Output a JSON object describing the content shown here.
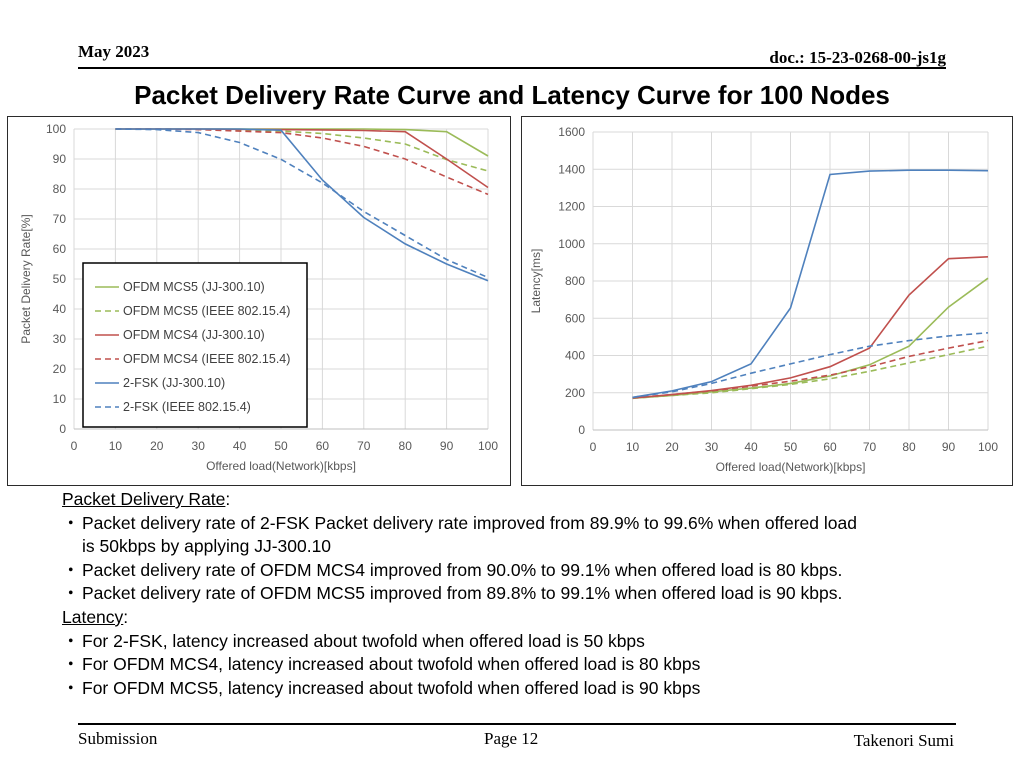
{
  "header": {
    "date": "May 2023",
    "doc": "doc.: 15-23-0268-00-js1g"
  },
  "title": "Packet Delivery Rate Curve and Latency Curve for 100 Nodes",
  "colors": {
    "green": "#9bbb59",
    "red": "#c0504d",
    "blue": "#4f81bd"
  },
  "chart_data": [
    {
      "type": "line",
      "id": "pdr",
      "title": "",
      "xlabel": "Offered load(Network)[kbps]",
      "ylabel": "Packet Delivery Rate[%]",
      "xlim": [
        0,
        100
      ],
      "ylim": [
        0,
        100
      ],
      "xticks": [
        "0",
        "10",
        "20",
        "30",
        "40",
        "50",
        "60",
        "70",
        "80",
        "90",
        "100"
      ],
      "yticks": [
        "0",
        "10",
        "20",
        "30",
        "40",
        "50",
        "60",
        "70",
        "80",
        "90",
        "100"
      ],
      "grid": true,
      "legend": "bottom-left",
      "x": [
        10,
        20,
        30,
        40,
        50,
        60,
        70,
        80,
        90,
        100
      ],
      "series": [
        {
          "name": "OFDM MCS5 (JJ-300.10)",
          "color": "#9bbb59",
          "dash": false,
          "values": [
            100,
            100,
            100,
            100,
            100,
            100,
            100,
            99.8,
            99.1,
            91
          ]
        },
        {
          "name": "OFDM MCS5 (IEEE 802.15.4)",
          "color": "#9bbb59",
          "dash": true,
          "values": [
            100,
            100,
            99.9,
            99.6,
            99.3,
            98.5,
            97,
            95,
            89.8,
            86
          ]
        },
        {
          "name": "OFDM MCS4 (JJ-300.10)",
          "color": "#c0504d",
          "dash": false,
          "values": [
            100,
            100,
            100,
            99.9,
            99.8,
            99.7,
            99.5,
            99.1,
            90,
            80.5
          ]
        },
        {
          "name": "OFDM MCS4 (IEEE 802.15.4)",
          "color": "#c0504d",
          "dash": true,
          "values": [
            100,
            100,
            99.8,
            99.3,
            98.8,
            97,
            94.2,
            90,
            84,
            78.2
          ]
        },
        {
          "name": "2-FSK (JJ-300.10)",
          "color": "#4f81bd",
          "dash": false,
          "values": [
            100,
            100,
            100,
            100,
            99.6,
            83,
            70.5,
            61.7,
            55,
            49.4
          ]
        },
        {
          "name": "2-FSK (IEEE 802.15.4)",
          "color": "#4f81bd",
          "dash": true,
          "values": [
            100,
            99.8,
            98.8,
            95.5,
            89.9,
            82,
            72.5,
            64.5,
            56.5,
            50.5
          ]
        }
      ]
    },
    {
      "type": "line",
      "id": "latency",
      "title": "",
      "xlabel": "Offered load(Network)[kbps]",
      "ylabel": "Latency[ms]",
      "xlim": [
        0,
        100
      ],
      "ylim": [
        0,
        1600
      ],
      "xticks": [
        "0",
        "10",
        "20",
        "30",
        "40",
        "50",
        "60",
        "70",
        "80",
        "90",
        "100"
      ],
      "yticks": [
        "0",
        "200",
        "400",
        "600",
        "800",
        "1000",
        "1200",
        "1400",
        "1600"
      ],
      "grid": true,
      "legend": "none",
      "x": [
        10,
        20,
        30,
        40,
        50,
        60,
        70,
        80,
        90,
        100
      ],
      "series": [
        {
          "name": "OFDM MCS5 (JJ-300.10)",
          "color": "#9bbb59",
          "dash": false,
          "values": [
            170,
            185,
            205,
            225,
            250,
            290,
            350,
            450,
            660,
            815
          ]
        },
        {
          "name": "OFDM MCS5 (IEEE 802.15.4)",
          "color": "#9bbb59",
          "dash": true,
          "values": [
            170,
            185,
            200,
            222,
            245,
            275,
            315,
            360,
            405,
            450
          ]
        },
        {
          "name": "OFDM MCS4 (JJ-300.10)",
          "color": "#c0504d",
          "dash": false,
          "values": [
            172,
            190,
            212,
            240,
            280,
            340,
            440,
            725,
            920,
            930
          ]
        },
        {
          "name": "OFDM MCS4 (IEEE 802.15.4)",
          "color": "#c0504d",
          "dash": true,
          "values": [
            172,
            190,
            210,
            235,
            262,
            295,
            340,
            395,
            440,
            480
          ]
        },
        {
          "name": "2-FSK (JJ-300.10)",
          "color": "#4f81bd",
          "dash": false,
          "values": [
            175,
            210,
            260,
            355,
            655,
            1372,
            1390,
            1395,
            1395,
            1392
          ]
        },
        {
          "name": "2-FSK (IEEE 802.15.4)",
          "color": "#4f81bd",
          "dash": true,
          "values": [
            175,
            205,
            250,
            305,
            355,
            405,
            450,
            480,
            505,
            522
          ]
        }
      ]
    }
  ],
  "notes": {
    "pdr_heading": "Packet Delivery Rate",
    "pdr_items": [
      "Packet delivery rate of 2-FSK Packet delivery rate improved from 89.9% to 99.6% when offered load",
      "Packet delivery rate of OFDM MCS4 improved from 90.0% to 99.1% when offered load is 80 kbps.",
      "Packet delivery rate of OFDM MCS5 improved from 89.8% to 99.1% when offered load is 90 kbps."
    ],
    "pdr_item1_cont": "is 50kbps by applying JJ-300.10",
    "latency_heading": "Latency",
    "latency_items": [
      "For 2-FSK, latency increased about twofold when offered load is 50 kbps",
      "For OFDM MCS4, latency increased about twofold when offered load is 80 kbps",
      "For OFDM MCS5, latency increased about twofold when offered load is 90 kbps"
    ],
    "colon": ":",
    "bullet": "・"
  },
  "footer": {
    "left": "Submission",
    "page": "Page 12",
    "author": "Takenori Sumi"
  }
}
